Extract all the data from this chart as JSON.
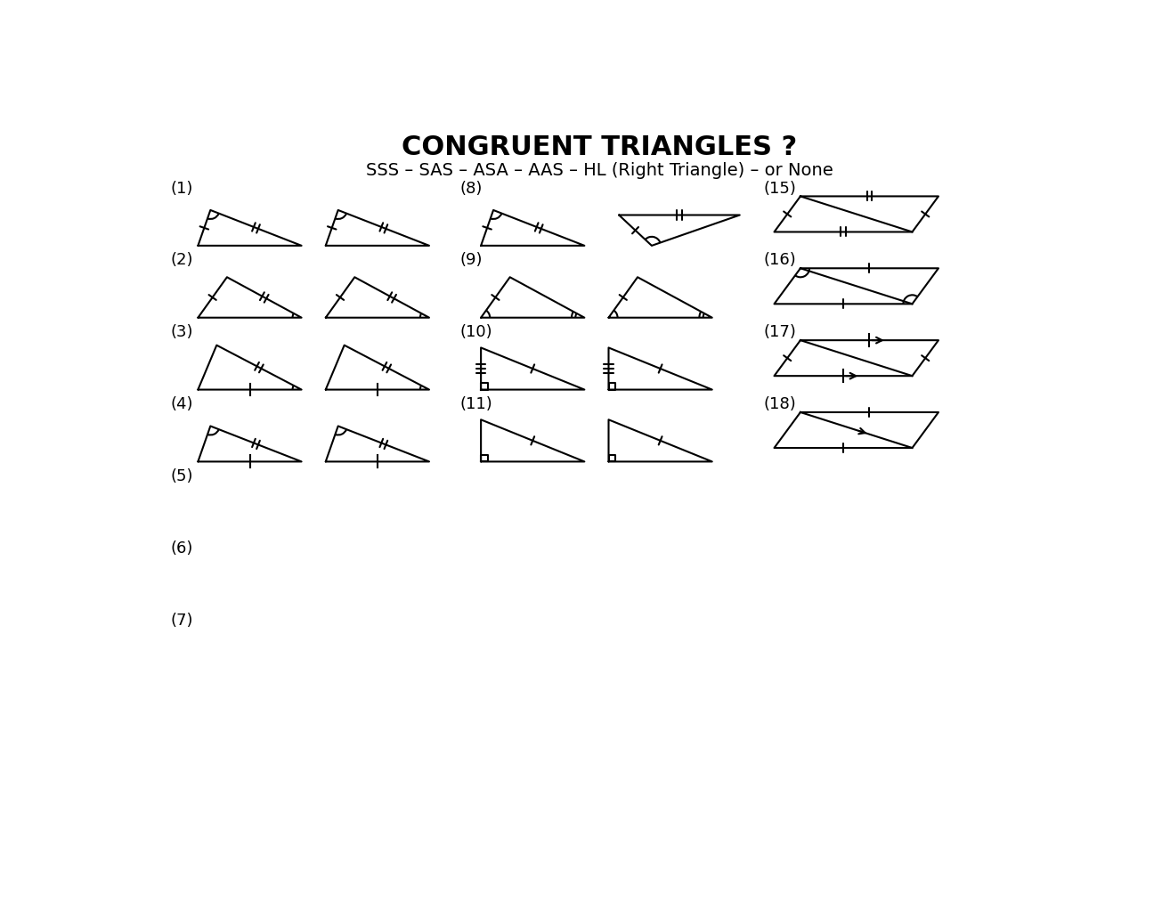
{
  "title": "CONGRUENT TRIANGLES ?",
  "subtitle": "SSS – SAS – ASA – AAS – HL (Right Triangle) – or None",
  "bg_color": "#ffffff",
  "line_color": "#000000",
  "title_fontsize": 22,
  "subtitle_fontsize": 14,
  "label_fontsize": 13
}
